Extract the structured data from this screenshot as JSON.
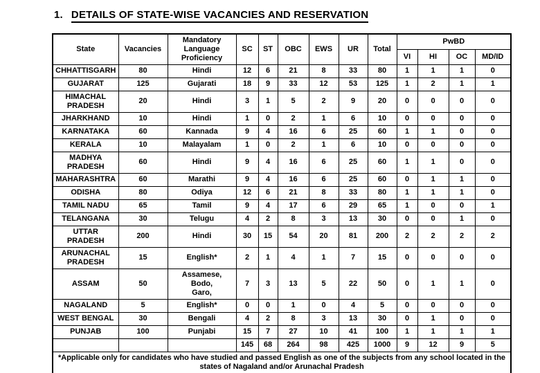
{
  "page": {
    "title_number": "1.",
    "title_text": "DETAILS OF STATE-WISE VACANCIES AND RESERVATION"
  },
  "table": {
    "headers": {
      "state": "State",
      "vacancies": "Vacancies",
      "language": "Mandatory\nLanguage\nProficiency",
      "sc": "SC",
      "st": "ST",
      "obc": "OBC",
      "ews": "EWS",
      "ur": "UR",
      "total": "Total",
      "pwbd": "PwBD",
      "vi": "VI",
      "hi": "HI",
      "oc": "OC",
      "mdid": "MD/ID"
    },
    "rows": [
      {
        "state": "CHHATTISGARH",
        "vacancies": "80",
        "language": "Hindi",
        "sc": "12",
        "st": "6",
        "obc": "21",
        "ews": "8",
        "ur": "33",
        "total": "80",
        "vi": "1",
        "hi": "1",
        "oc": "1",
        "mdid": "0"
      },
      {
        "state": "GUJARAT",
        "vacancies": "125",
        "language": "Gujarati",
        "sc": "18",
        "st": "9",
        "obc": "33",
        "ews": "12",
        "ur": "53",
        "total": "125",
        "vi": "1",
        "hi": "2",
        "oc": "1",
        "mdid": "1"
      },
      {
        "state": "HIMACHAL\nPRADESH",
        "vacancies": "20",
        "language": "Hindi",
        "sc": "3",
        "st": "1",
        "obc": "5",
        "ews": "2",
        "ur": "9",
        "total": "20",
        "vi": "0",
        "hi": "0",
        "oc": "0",
        "mdid": "0"
      },
      {
        "state": "JHARKHAND",
        "vacancies": "10",
        "language": "Hindi",
        "sc": "1",
        "st": "0",
        "obc": "2",
        "ews": "1",
        "ur": "6",
        "total": "10",
        "vi": "0",
        "hi": "0",
        "oc": "0",
        "mdid": "0"
      },
      {
        "state": "KARNATAKA",
        "vacancies": "60",
        "language": "Kannada",
        "sc": "9",
        "st": "4",
        "obc": "16",
        "ews": "6",
        "ur": "25",
        "total": "60",
        "vi": "1",
        "hi": "1",
        "oc": "0",
        "mdid": "0"
      },
      {
        "state": "KERALA",
        "vacancies": "10",
        "language": "Malayalam",
        "sc": "1",
        "st": "0",
        "obc": "2",
        "ews": "1",
        "ur": "6",
        "total": "10",
        "vi": "0",
        "hi": "0",
        "oc": "0",
        "mdid": "0"
      },
      {
        "state": "MADHYA\nPRADESH",
        "vacancies": "60",
        "language": "Hindi",
        "sc": "9",
        "st": "4",
        "obc": "16",
        "ews": "6",
        "ur": "25",
        "total": "60",
        "vi": "1",
        "hi": "1",
        "oc": "0",
        "mdid": "0"
      },
      {
        "state": "MAHARASHTRA",
        "vacancies": "60",
        "language": "Marathi",
        "sc": "9",
        "st": "4",
        "obc": "16",
        "ews": "6",
        "ur": "25",
        "total": "60",
        "vi": "0",
        "hi": "1",
        "oc": "1",
        "mdid": "0"
      },
      {
        "state": "ODISHA",
        "vacancies": "80",
        "language": "Odiya",
        "sc": "12",
        "st": "6",
        "obc": "21",
        "ews": "8",
        "ur": "33",
        "total": "80",
        "vi": "1",
        "hi": "1",
        "oc": "1",
        "mdid": "0"
      },
      {
        "state": "TAMIL NADU",
        "vacancies": "65",
        "language": "Tamil",
        "sc": "9",
        "st": "4",
        "obc": "17",
        "ews": "6",
        "ur": "29",
        "total": "65",
        "vi": "1",
        "hi": "0",
        "oc": "0",
        "mdid": "1"
      },
      {
        "state": "TELANGANA",
        "vacancies": "30",
        "language": "Telugu",
        "sc": "4",
        "st": "2",
        "obc": "8",
        "ews": "3",
        "ur": "13",
        "total": "30",
        "vi": "0",
        "hi": "0",
        "oc": "1",
        "mdid": "0"
      },
      {
        "state": "UTTAR\nPRADESH",
        "vacancies": "200",
        "language": "Hindi",
        "sc": "30",
        "st": "15",
        "obc": "54",
        "ews": "20",
        "ur": "81",
        "total": "200",
        "vi": "2",
        "hi": "2",
        "oc": "2",
        "mdid": "2"
      },
      {
        "state": "ARUNACHAL\nPRADESH",
        "vacancies": "15",
        "language": "English*",
        "sc": "2",
        "st": "1",
        "obc": "4",
        "ews": "1",
        "ur": "7",
        "total": "15",
        "vi": "0",
        "hi": "0",
        "oc": "0",
        "mdid": "0"
      },
      {
        "state": "ASSAM",
        "vacancies": "50",
        "language": "Assamese,\nBodo,\nGaro,",
        "sc": "7",
        "st": "3",
        "obc": "13",
        "ews": "5",
        "ur": "22",
        "total": "50",
        "vi": "0",
        "hi": "1",
        "oc": "1",
        "mdid": "0"
      },
      {
        "state": "NAGALAND",
        "vacancies": "5",
        "language": "English*",
        "sc": "0",
        "st": "0",
        "obc": "1",
        "ews": "0",
        "ur": "4",
        "total": "5",
        "vi": "0",
        "hi": "0",
        "oc": "0",
        "mdid": "0"
      },
      {
        "state": "WEST BENGAL",
        "vacancies": "30",
        "language": "Bengali",
        "sc": "4",
        "st": "2",
        "obc": "8",
        "ews": "3",
        "ur": "13",
        "total": "30",
        "vi": "0",
        "hi": "1",
        "oc": "0",
        "mdid": "0"
      },
      {
        "state": "PUNJAB",
        "vacancies": "100",
        "language": "Punjabi",
        "sc": "15",
        "st": "7",
        "obc": "27",
        "ews": "10",
        "ur": "41",
        "total": "100",
        "vi": "1",
        "hi": "1",
        "oc": "1",
        "mdid": "1"
      }
    ],
    "totals": {
      "sc": "145",
      "st": "68",
      "obc": "264",
      "ews": "98",
      "ur": "425",
      "total": "1000",
      "vi": "9",
      "hi": "12",
      "oc": "9",
      "mdid": "5"
    },
    "footnote": "*Applicable only for candidates who have studied and passed English as one of the subjects from any school located in the states of Nagaland and/or Arunachal Pradesh"
  }
}
